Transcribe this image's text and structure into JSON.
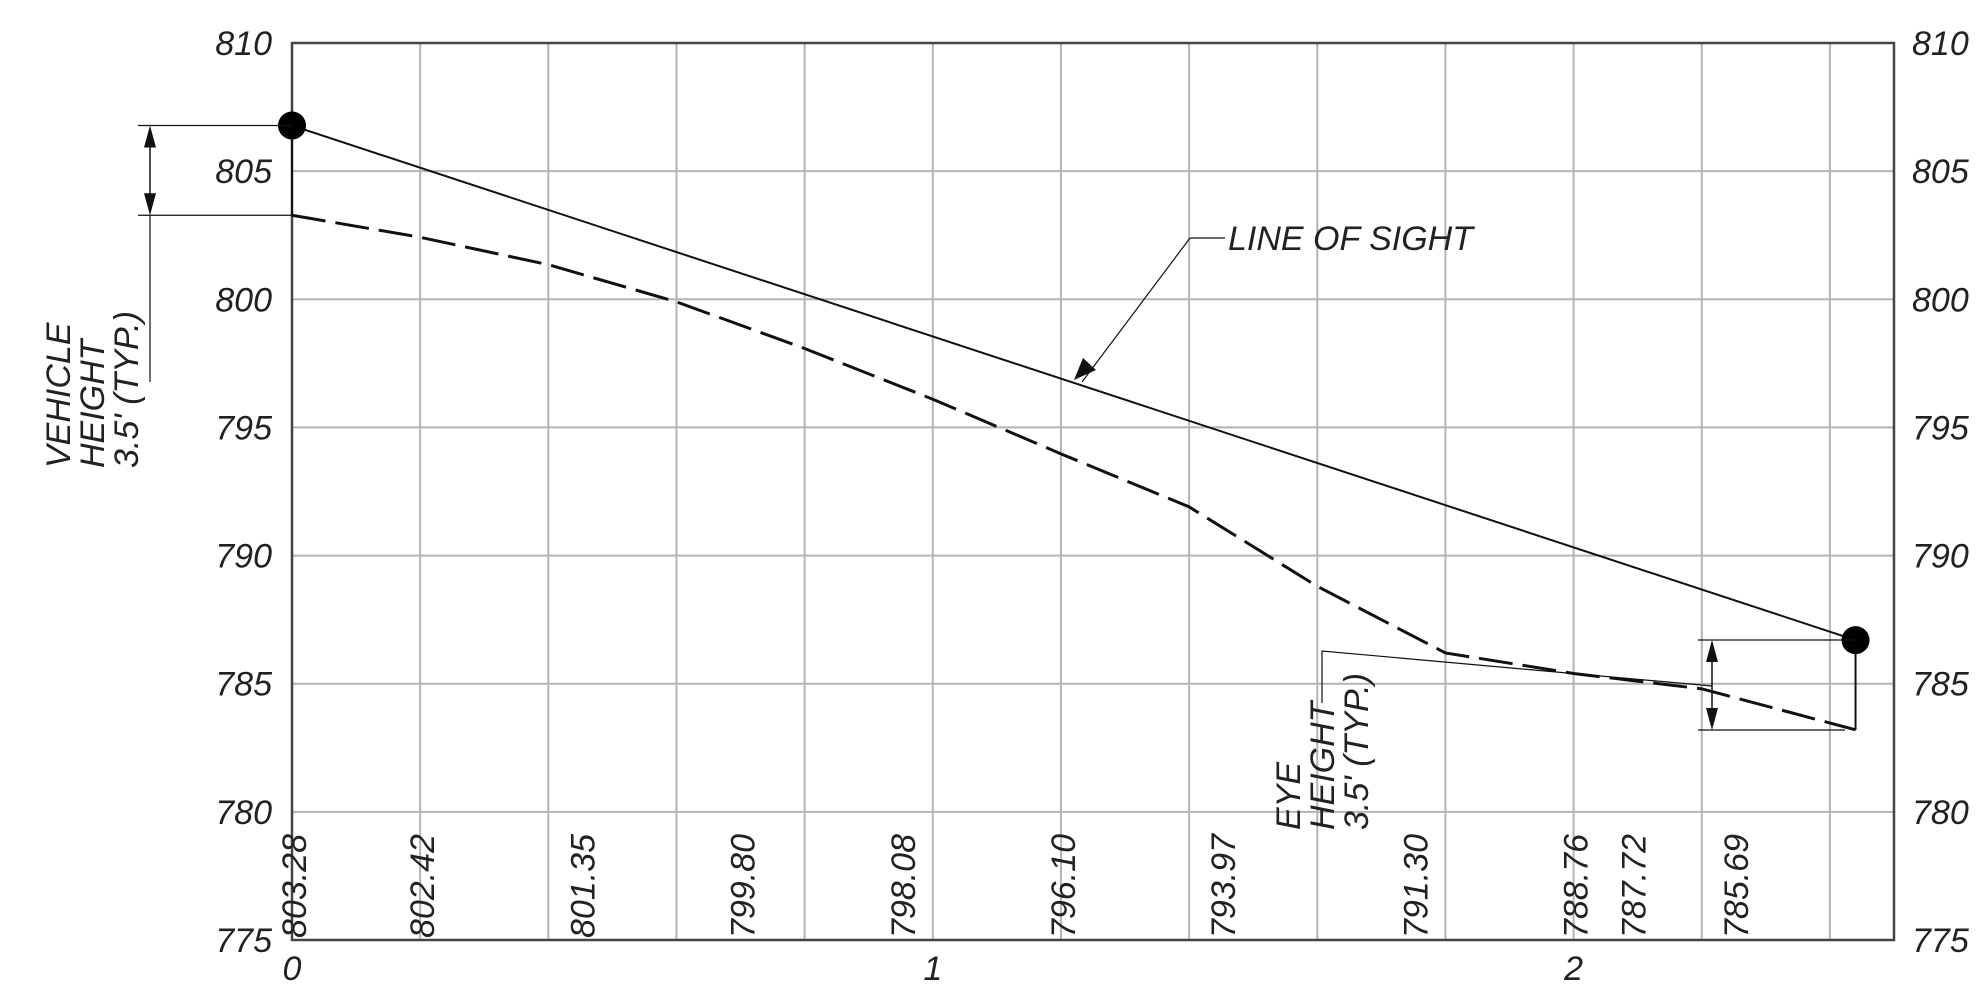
{
  "chart_data": {
    "type": "line",
    "x_ticks": [
      "0",
      "1",
      "2"
    ],
    "y_ticks": [
      "775",
      "780",
      "785",
      "790",
      "795",
      "800",
      "805",
      "810"
    ],
    "xlim": [
      0,
      2.5
    ],
    "ylim": [
      775,
      810
    ],
    "grid": true,
    "series": [
      {
        "style": "solid",
        "x": [
          0,
          2.44
        ],
        "y": [
          806.78,
          786.7
        ]
      },
      {
        "style": "dashed",
        "x": [
          0,
          0.2,
          0.4,
          0.6,
          0.8,
          1.0,
          1.2,
          1.4,
          1.6,
          1.8,
          2.0,
          2.2,
          2.44
        ],
        "y": [
          803.28,
          802.42,
          801.35,
          799.9,
          798.08,
          796.1,
          793.97,
          791.9,
          788.8,
          786.2,
          785.4,
          784.8,
          783.2
        ]
      }
    ],
    "elevation_labels": [
      {
        "x": 0.0,
        "text": "803.28"
      },
      {
        "x": 0.2,
        "text": "802.42"
      },
      {
        "x": 0.45,
        "text": "801.35"
      },
      {
        "x": 0.7,
        "text": "799.80"
      },
      {
        "x": 0.95,
        "text": "798.08"
      },
      {
        "x": 1.2,
        "text": "796.10"
      },
      {
        "x": 1.45,
        "text": "793.97"
      },
      {
        "x": 1.75,
        "text": "791.30"
      },
      {
        "x": 2.0,
        "text": "788.76"
      },
      {
        "x": 2.09,
        "text": "787.72"
      },
      {
        "x": 2.25,
        "text": "785.69"
      }
    ],
    "annotations": {
      "line_of_sight": "LINE OF SIGHT",
      "vehicle_height": [
        "VEHICLE",
        "HEIGHT",
        "3.5' (TYP.)"
      ],
      "eye_height": [
        "EYE",
        "HEIGHT",
        "3.5' (TYP.)"
      ]
    }
  }
}
